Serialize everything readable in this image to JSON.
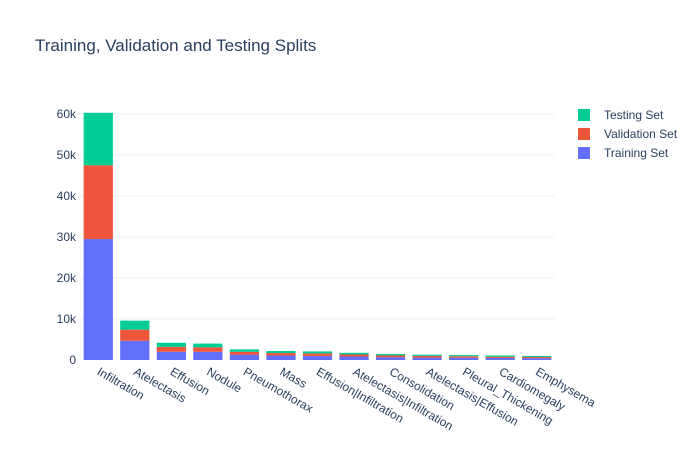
{
  "chart_data": {
    "type": "bar",
    "stacked": true,
    "title": "Training, Validation and Testing Splits",
    "xlabel": "",
    "ylabel": "",
    "ylim": [
      0,
      60000
    ],
    "y_ticks": [
      0,
      10000,
      20000,
      30000,
      40000,
      50000,
      60000
    ],
    "y_tick_labels": [
      "0",
      "10k",
      "20k",
      "30k",
      "40k",
      "50k",
      "60k"
    ],
    "grid": true,
    "legend_position": "top-right",
    "categories": [
      "Infiltration",
      "Atelectasis",
      "Effusion",
      "Nodule",
      "Pneumothorax",
      "Mass",
      "Effusion|Infiltration",
      "Atelectasis|Infiltration",
      "Consolidation",
      "Atelectasis|Effusion",
      "Pleural_Thickening",
      "Cardiomegaly",
      "Emphysema"
    ],
    "series": [
      {
        "name": "Training Set",
        "color": "#636efa",
        "values": [
          29500,
          4700,
          2000,
          2000,
          1300,
          1100,
          1000,
          850,
          700,
          600,
          550,
          500,
          450
        ]
      },
      {
        "name": "Validation Set",
        "color": "#ef553b",
        "values": [
          18000,
          2700,
          1200,
          1100,
          700,
          600,
          600,
          500,
          400,
          400,
          350,
          300,
          300
        ]
      },
      {
        "name": "Testing Set",
        "color": "#00cc96",
        "values": [
          12800,
          2200,
          1000,
          900,
          600,
          500,
          500,
          400,
          350,
          300,
          300,
          300,
          250
        ]
      }
    ]
  }
}
